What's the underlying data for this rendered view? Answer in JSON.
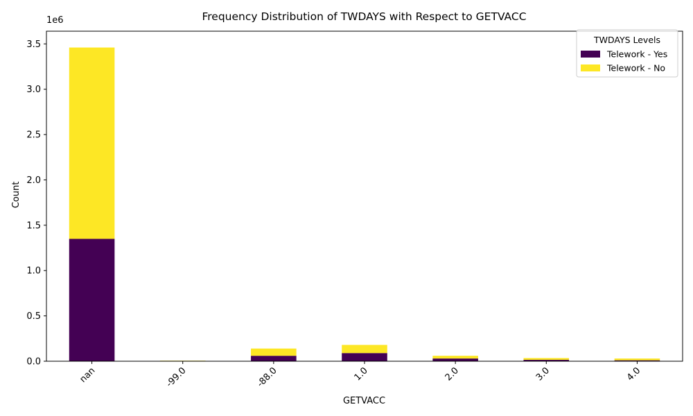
{
  "chart_data": {
    "type": "bar",
    "stacked": true,
    "title": "Frequency Distribution of TWDAYS with Respect to GETVACC",
    "xlabel": "GETVACC",
    "ylabel": "Count",
    "y_scale_label": "1e6",
    "y_scale_factor": 1000000,
    "ylim": [
      0,
      3640000
    ],
    "yticks": [
      0,
      500000,
      1000000,
      1500000,
      2000000,
      2500000,
      3000000,
      3500000
    ],
    "ytick_labels": [
      "0.0",
      "0.5",
      "1.0",
      "1.5",
      "2.0",
      "2.5",
      "3.0",
      "3.5"
    ],
    "categories": [
      "nan",
      "-99.0",
      "-88.0",
      "1.0",
      "2.0",
      "3.0",
      "4.0"
    ],
    "series": [
      {
        "name": "Telework - Yes",
        "color": "#440154",
        "values": [
          1350000,
          2000,
          60000,
          90000,
          30000,
          15000,
          10000
        ]
      },
      {
        "name": "Telework - No",
        "color": "#fde725",
        "values": [
          2110000,
          4000,
          80000,
          90000,
          30000,
          20000,
          20000
        ]
      }
    ],
    "legend": {
      "title": "TWDAYS Levels",
      "position": "top-right"
    },
    "grid": false
  }
}
